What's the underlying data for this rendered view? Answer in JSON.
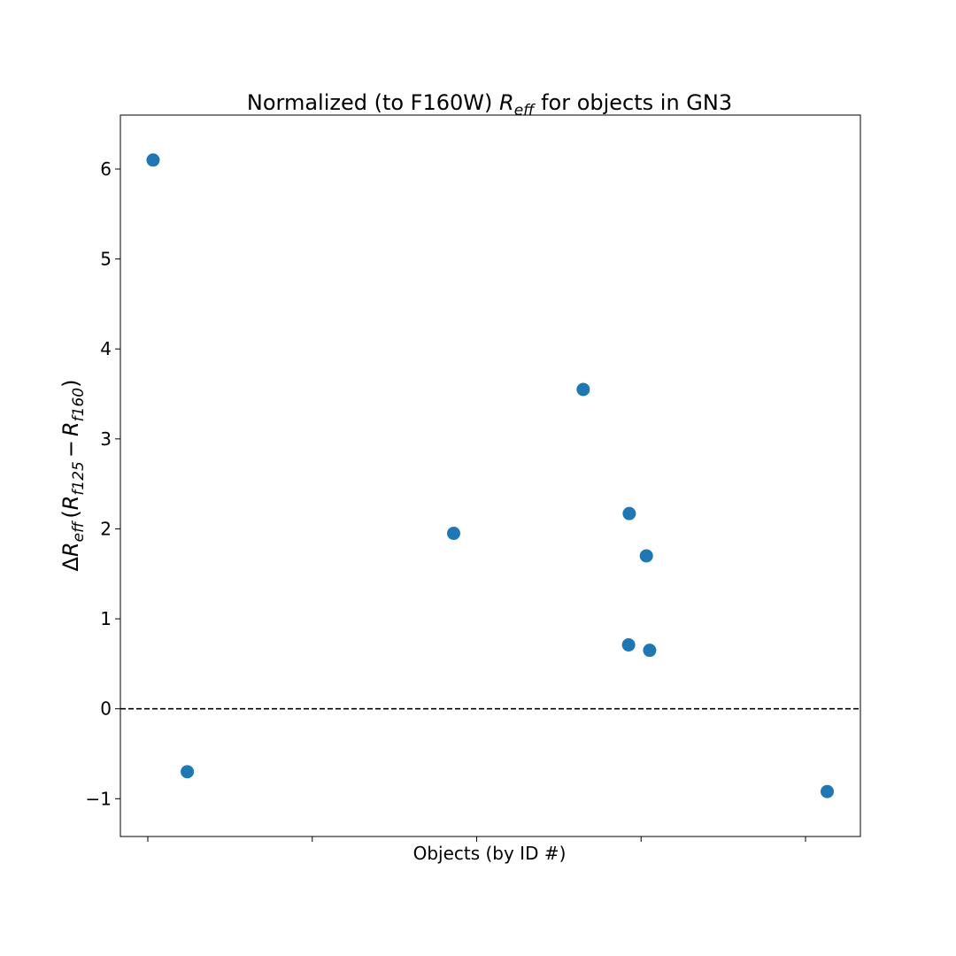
{
  "chart_data": {
    "type": "scatter",
    "title_prefix": "Normalized (to F160W) ",
    "title_math": "R",
    "title_math_sub": "eff",
    "title_suffix": " for objects in GN3",
    "xlabel": "Objects (by ID #)",
    "ylabel": {
      "delta": "Δ",
      "r": "R",
      "eff": "eff",
      "open": "(",
      "r1": "R",
      "sub1": "f125",
      "minus": "−",
      "r2": "R",
      "sub2": "f160",
      "close": ")"
    },
    "xlim": [
      0.0,
      1.0
    ],
    "x_ticks": [
      0.0,
      0.25,
      0.5,
      0.75,
      1.0
    ],
    "x_tick_labels": [
      "",
      "",
      "",
      "",
      ""
    ],
    "ylim": [
      -1.42,
      6.6
    ],
    "y_ticks": [
      -1,
      0,
      1,
      2,
      3,
      4,
      5,
      6
    ],
    "y_tick_labels": [
      "−1",
      "0",
      "1",
      "2",
      "3",
      "4",
      "5",
      "6"
    ],
    "reference_line": {
      "y": 0,
      "style": "dashed",
      "color": "#000000"
    },
    "marker_color": "#1f77b4",
    "points": [
      {
        "x": 0.008,
        "y": 6.1
      },
      {
        "x": 0.06,
        "y": -0.7
      },
      {
        "x": 0.465,
        "y": 1.95
      },
      {
        "x": 0.662,
        "y": 3.55
      },
      {
        "x": 0.732,
        "y": 2.17
      },
      {
        "x": 0.731,
        "y": 0.71
      },
      {
        "x": 0.758,
        "y": 1.7
      },
      {
        "x": 0.763,
        "y": 0.65
      },
      {
        "x": 1.033,
        "y": -0.92
      }
    ]
  }
}
